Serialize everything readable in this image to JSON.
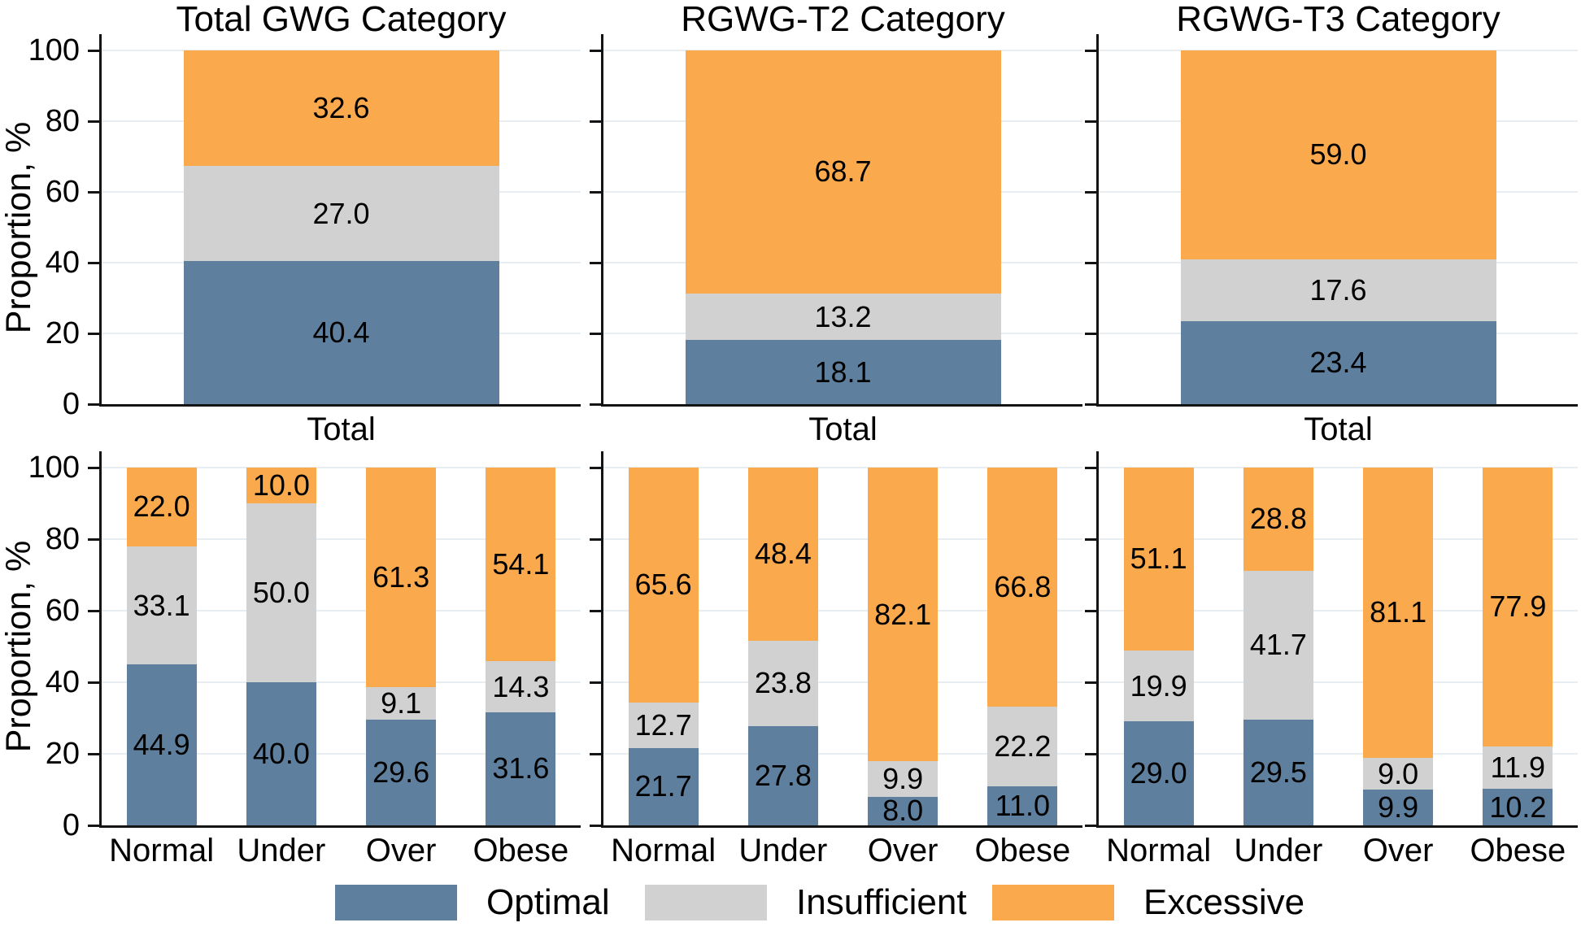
{
  "figure": {
    "ylabel": "Proportion, %",
    "background": "#ffffff",
    "axis_color": "#141414",
    "gridline_color": "#e8edf1",
    "legend": [
      {
        "label": "Optimal",
        "color": "#5e7f9d"
      },
      {
        "label": "Insufficient",
        "color": "#d1d1d1"
      },
      {
        "label": "Excessive",
        "color": "#fba94d"
      }
    ]
  },
  "chart_data": [
    {
      "type": "bar",
      "stacked": true,
      "title": "Total GWG Category",
      "ylabel": "Proportion, %",
      "ylim": [
        0,
        100
      ],
      "yticks": [
        0,
        20,
        40,
        60,
        80,
        100
      ],
      "grid": true,
      "categories": [
        "Total"
      ],
      "series": [
        {
          "name": "Optimal",
          "color": "#5e7f9d",
          "values": [
            40.4
          ]
        },
        {
          "name": "Insufficient",
          "color": "#d1d1d1",
          "values": [
            27.0
          ]
        },
        {
          "name": "Excessive",
          "color": "#fba94d",
          "values": [
            32.6
          ]
        }
      ]
    },
    {
      "type": "bar",
      "stacked": true,
      "title": "RGWG-T2 Category",
      "ylabel": "Proportion, %",
      "ylim": [
        0,
        100
      ],
      "yticks": [
        0,
        20,
        40,
        60,
        80,
        100
      ],
      "grid": true,
      "categories": [
        "Total"
      ],
      "series": [
        {
          "name": "Optimal",
          "color": "#5e7f9d",
          "values": [
            18.1
          ]
        },
        {
          "name": "Insufficient",
          "color": "#d1d1d1",
          "values": [
            13.2
          ]
        },
        {
          "name": "Excessive",
          "color": "#fba94d",
          "values": [
            68.7
          ]
        }
      ]
    },
    {
      "type": "bar",
      "stacked": true,
      "title": "RGWG-T3 Category",
      "ylabel": "Proportion, %",
      "ylim": [
        0,
        100
      ],
      "yticks": [
        0,
        20,
        40,
        60,
        80,
        100
      ],
      "grid": true,
      "categories": [
        "Total"
      ],
      "series": [
        {
          "name": "Optimal",
          "color": "#5e7f9d",
          "values": [
            23.4
          ]
        },
        {
          "name": "Insufficient",
          "color": "#d1d1d1",
          "values": [
            17.6
          ]
        },
        {
          "name": "Excessive",
          "color": "#fba94d",
          "values": [
            59.0
          ]
        }
      ]
    },
    {
      "type": "bar",
      "stacked": true,
      "title": "",
      "ylabel": "Proportion, %",
      "ylim": [
        0,
        100
      ],
      "yticks": [
        0,
        20,
        40,
        60,
        80,
        100
      ],
      "grid": true,
      "categories": [
        "Normal",
        "Under",
        "Over",
        "Obese"
      ],
      "series": [
        {
          "name": "Optimal",
          "color": "#5e7f9d",
          "values": [
            44.9,
            40.0,
            29.6,
            31.6
          ]
        },
        {
          "name": "Insufficient",
          "color": "#d1d1d1",
          "values": [
            33.1,
            50.0,
            9.1,
            14.3
          ]
        },
        {
          "name": "Excessive",
          "color": "#fba94d",
          "values": [
            22.0,
            10.0,
            61.3,
            54.1
          ]
        }
      ]
    },
    {
      "type": "bar",
      "stacked": true,
      "title": "",
      "ylabel": "Proportion, %",
      "ylim": [
        0,
        100
      ],
      "yticks": [
        0,
        20,
        40,
        60,
        80,
        100
      ],
      "grid": true,
      "categories": [
        "Normal",
        "Under",
        "Over",
        "Obese"
      ],
      "series": [
        {
          "name": "Optimal",
          "color": "#5e7f9d",
          "values": [
            21.7,
            27.8,
            8.0,
            11.0
          ]
        },
        {
          "name": "Insufficient",
          "color": "#d1d1d1",
          "values": [
            12.7,
            23.8,
            9.9,
            22.2
          ]
        },
        {
          "name": "Excessive",
          "color": "#fba94d",
          "values": [
            65.6,
            48.4,
            82.1,
            66.8
          ]
        }
      ]
    },
    {
      "type": "bar",
      "stacked": true,
      "title": "",
      "ylabel": "Proportion, %",
      "ylim": [
        0,
        100
      ],
      "yticks": [
        0,
        20,
        40,
        60,
        80,
        100
      ],
      "grid": true,
      "categories": [
        "Normal",
        "Under",
        "Over",
        "Obese"
      ],
      "series": [
        {
          "name": "Optimal",
          "color": "#5e7f9d",
          "values": [
            29.0,
            29.5,
            9.9,
            10.2
          ]
        },
        {
          "name": "Insufficient",
          "color": "#d1d1d1",
          "values": [
            19.9,
            41.7,
            9.0,
            11.9
          ]
        },
        {
          "name": "Excessive",
          "color": "#fba94d",
          "values": [
            51.1,
            28.8,
            81.1,
            77.9
          ]
        }
      ]
    }
  ]
}
